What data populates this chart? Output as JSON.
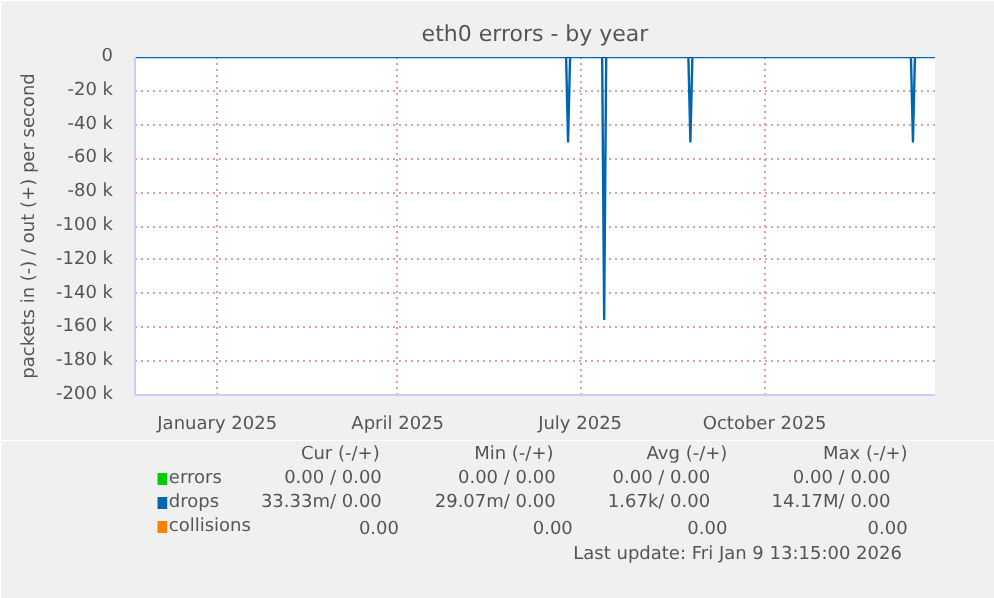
{
  "chart_data": {
    "type": "line",
    "title": "eth0 errors - by year",
    "ylabel": "packets in (-) / out (+) per second",
    "xlim": [
      "2024-12-07",
      "2026-01-10"
    ],
    "xticks": [
      {
        "value": "2025-01-17",
        "label": "January 2025"
      },
      {
        "value": "2025-04-17",
        "label": "April 2025"
      },
      {
        "value": "2025-07-17",
        "label": "July 2025"
      },
      {
        "value": "2025-10-17",
        "label": "October 2025"
      }
    ],
    "ylim": [
      -200000,
      0
    ],
    "yticks": [
      {
        "value": 0,
        "label": "0"
      },
      {
        "value": -20000,
        "label": "-20 k"
      },
      {
        "value": -40000,
        "label": "-40 k"
      },
      {
        "value": -60000,
        "label": "-60 k"
      },
      {
        "value": -80000,
        "label": "-80 k"
      },
      {
        "value": -100000,
        "label": "-100 k"
      },
      {
        "value": -120000,
        "label": "-120 k"
      },
      {
        "value": -140000,
        "label": "-140 k"
      },
      {
        "value": -160000,
        "label": "-160 k"
      },
      {
        "value": -180000,
        "label": "-180 k"
      },
      {
        "value": -200000,
        "label": "-200 k"
      }
    ],
    "grid": true,
    "legend": "bottom",
    "series": [
      {
        "name": "errors",
        "color": "#00cc00",
        "values": [
          null,
          null
        ]
      },
      {
        "name": "drops",
        "color": "#0066b3",
        "x": [
          "2024-12-07",
          "2025-07-10",
          "2025-07-11",
          "2025-07-12",
          "2025-07-28",
          "2025-07-29",
          "2025-07-30",
          "2025-09-09",
          "2025-09-10",
          "2025-09-11",
          "2025-12-29",
          "2025-12-30",
          "2025-12-31",
          "2026-01-10"
        ],
        "values": [
          0,
          0,
          -50000,
          0,
          0,
          -155000,
          0,
          0,
          -50000,
          0,
          0,
          -50000,
          0,
          0
        ]
      },
      {
        "name": "collisions",
        "color": "#ff8000",
        "values": [
          null,
          null
        ]
      }
    ],
    "annotations": [
      "Cur (-/+)",
      "Min (-/+)",
      "Avg (-/+)",
      "Max (-/+)",
      "0.00 /    0.00",
      "0.00 /    0.00",
      "0.00 /    0.00",
      "0.00 /    0.00",
      "33.33m/    0.00",
      "29.07m/    0.00",
      "1.67k/    0.00",
      "14.17M/    0.00",
      "0.00",
      "0.00",
      "0.00",
      "0.00",
      "Last update: Fri Jan  9 13:15:00 2026"
    ]
  }
}
